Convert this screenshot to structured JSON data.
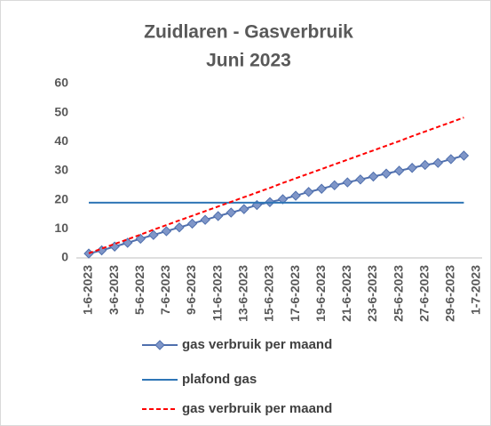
{
  "chart_data": {
    "type": "line",
    "title": "Zuidlaren - Gasverbruik",
    "subtitle": "Juni 2023",
    "categories": [
      "1-6-2023",
      null,
      "3-6-2023",
      null,
      "5-6-2023",
      null,
      "7-6-2023",
      null,
      "9-6-2023",
      null,
      "11-6-2023",
      null,
      "13-6-2023",
      null,
      "15-6-2023",
      null,
      "17-6-2023",
      null,
      "19-6-2023",
      null,
      "21-6-2023",
      null,
      "23-6-2023",
      null,
      "25-6-2023",
      null,
      "27-6-2023",
      null,
      "29-6-2023",
      null,
      "1-7-2023"
    ],
    "series": [
      {
        "name": "gas verbruik per maand",
        "color": "#4f6fad",
        "marker": "diamond",
        "style": "solid",
        "values": [
          1.5,
          2.6,
          3.9,
          5.2,
          6.6,
          7.9,
          9.2,
          10.5,
          11.8,
          13.1,
          14.4,
          15.6,
          16.8,
          18.2,
          19.2,
          20.2,
          21.4,
          22.7,
          23.8,
          25.0,
          26.0,
          27.0,
          28.0,
          29.0,
          30.0,
          31.0,
          32.0,
          32.7,
          34.0,
          35.2,
          null
        ]
      },
      {
        "name": "plafond gas",
        "color": "#2e75b6",
        "marker": "none",
        "style": "solid",
        "values": [
          19,
          19,
          19,
          19,
          19,
          19,
          19,
          19,
          19,
          19,
          19,
          19,
          19,
          19,
          19,
          19,
          19,
          19,
          19,
          19,
          19,
          19,
          19,
          19,
          19,
          19,
          19,
          19,
          19,
          19,
          null
        ]
      },
      {
        "name": "gas verbruik per maand",
        "color": "#ff0000",
        "marker": "none",
        "style": "dashed",
        "values": [
          1.6,
          3.2,
          4.8,
          6.4,
          8.0,
          9.7,
          11.3,
          12.9,
          14.5,
          16.1,
          17.7,
          19.3,
          20.9,
          22.5,
          24.1,
          25.8,
          27.4,
          29.0,
          30.6,
          32.2,
          33.8,
          35.4,
          37.0,
          38.6,
          40.2,
          41.9,
          43.5,
          45.1,
          46.7,
          48.3,
          null
        ]
      }
    ],
    "ylim": [
      0,
      60
    ],
    "yticks": [
      0,
      10,
      20,
      30,
      40,
      50,
      60
    ],
    "grid": false,
    "legend": "bottom"
  }
}
